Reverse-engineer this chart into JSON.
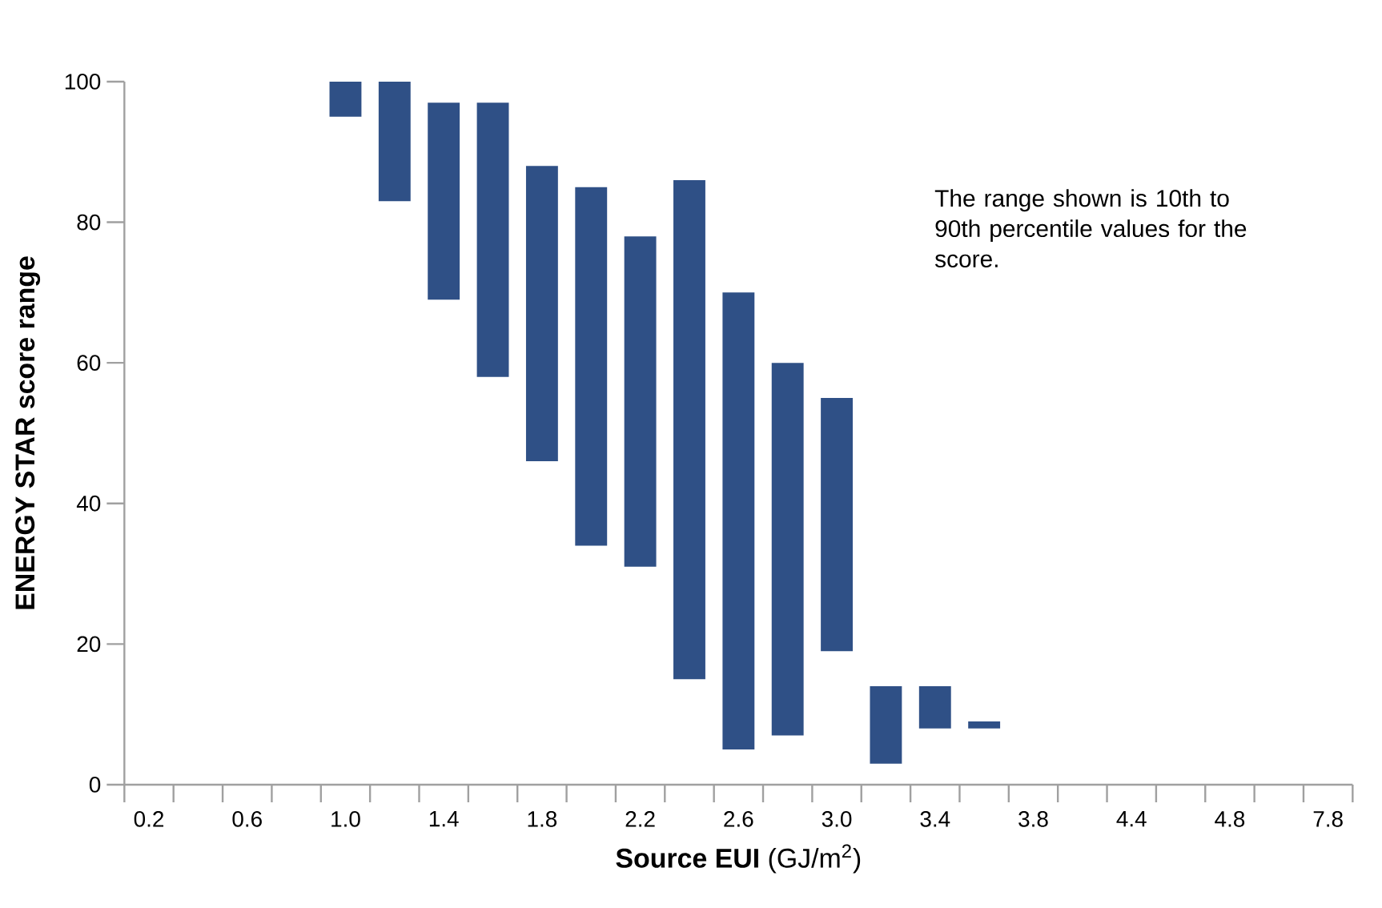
{
  "chart_data": {
    "type": "bar",
    "xlabel": "**Source EUI** (GJ/m$^{2}$)",
    "ylabel": "ENERGY STAR score range",
    "categories": [
      "0.2",
      null,
      "0.6",
      null,
      "1.0",
      null,
      "1.4",
      null,
      "1.8",
      null,
      "2.2",
      null,
      "2.6",
      null,
      "3.0",
      null,
      "3.4",
      null,
      "3.8",
      null,
      "4.4",
      null,
      "4.8",
      null,
      "7.8"
    ],
    "values": [
      null,
      null,
      null,
      null,
      5,
      17,
      28,
      39,
      42,
      51,
      47,
      71,
      65,
      53,
      36,
      11,
      6,
      1,
      null,
      null,
      null,
      null,
      null,
      null,
      null
    ],
    "base": [
      null,
      null,
      null,
      null,
      95,
      83,
      69,
      58,
      46,
      34,
      31,
      15,
      5,
      7,
      19,
      3,
      8,
      8,
      null,
      null,
      null,
      null,
      null,
      null,
      null
    ],
    "color": "#2f5086",
    "ylim": [
      0,
      100
    ],
    "yticks": [
      0,
      20,
      40,
      60,
      80,
      100
    ],
    "annotations": [
      "The range shown is 10th to 90th percentile values for the score."
    ]
  }
}
